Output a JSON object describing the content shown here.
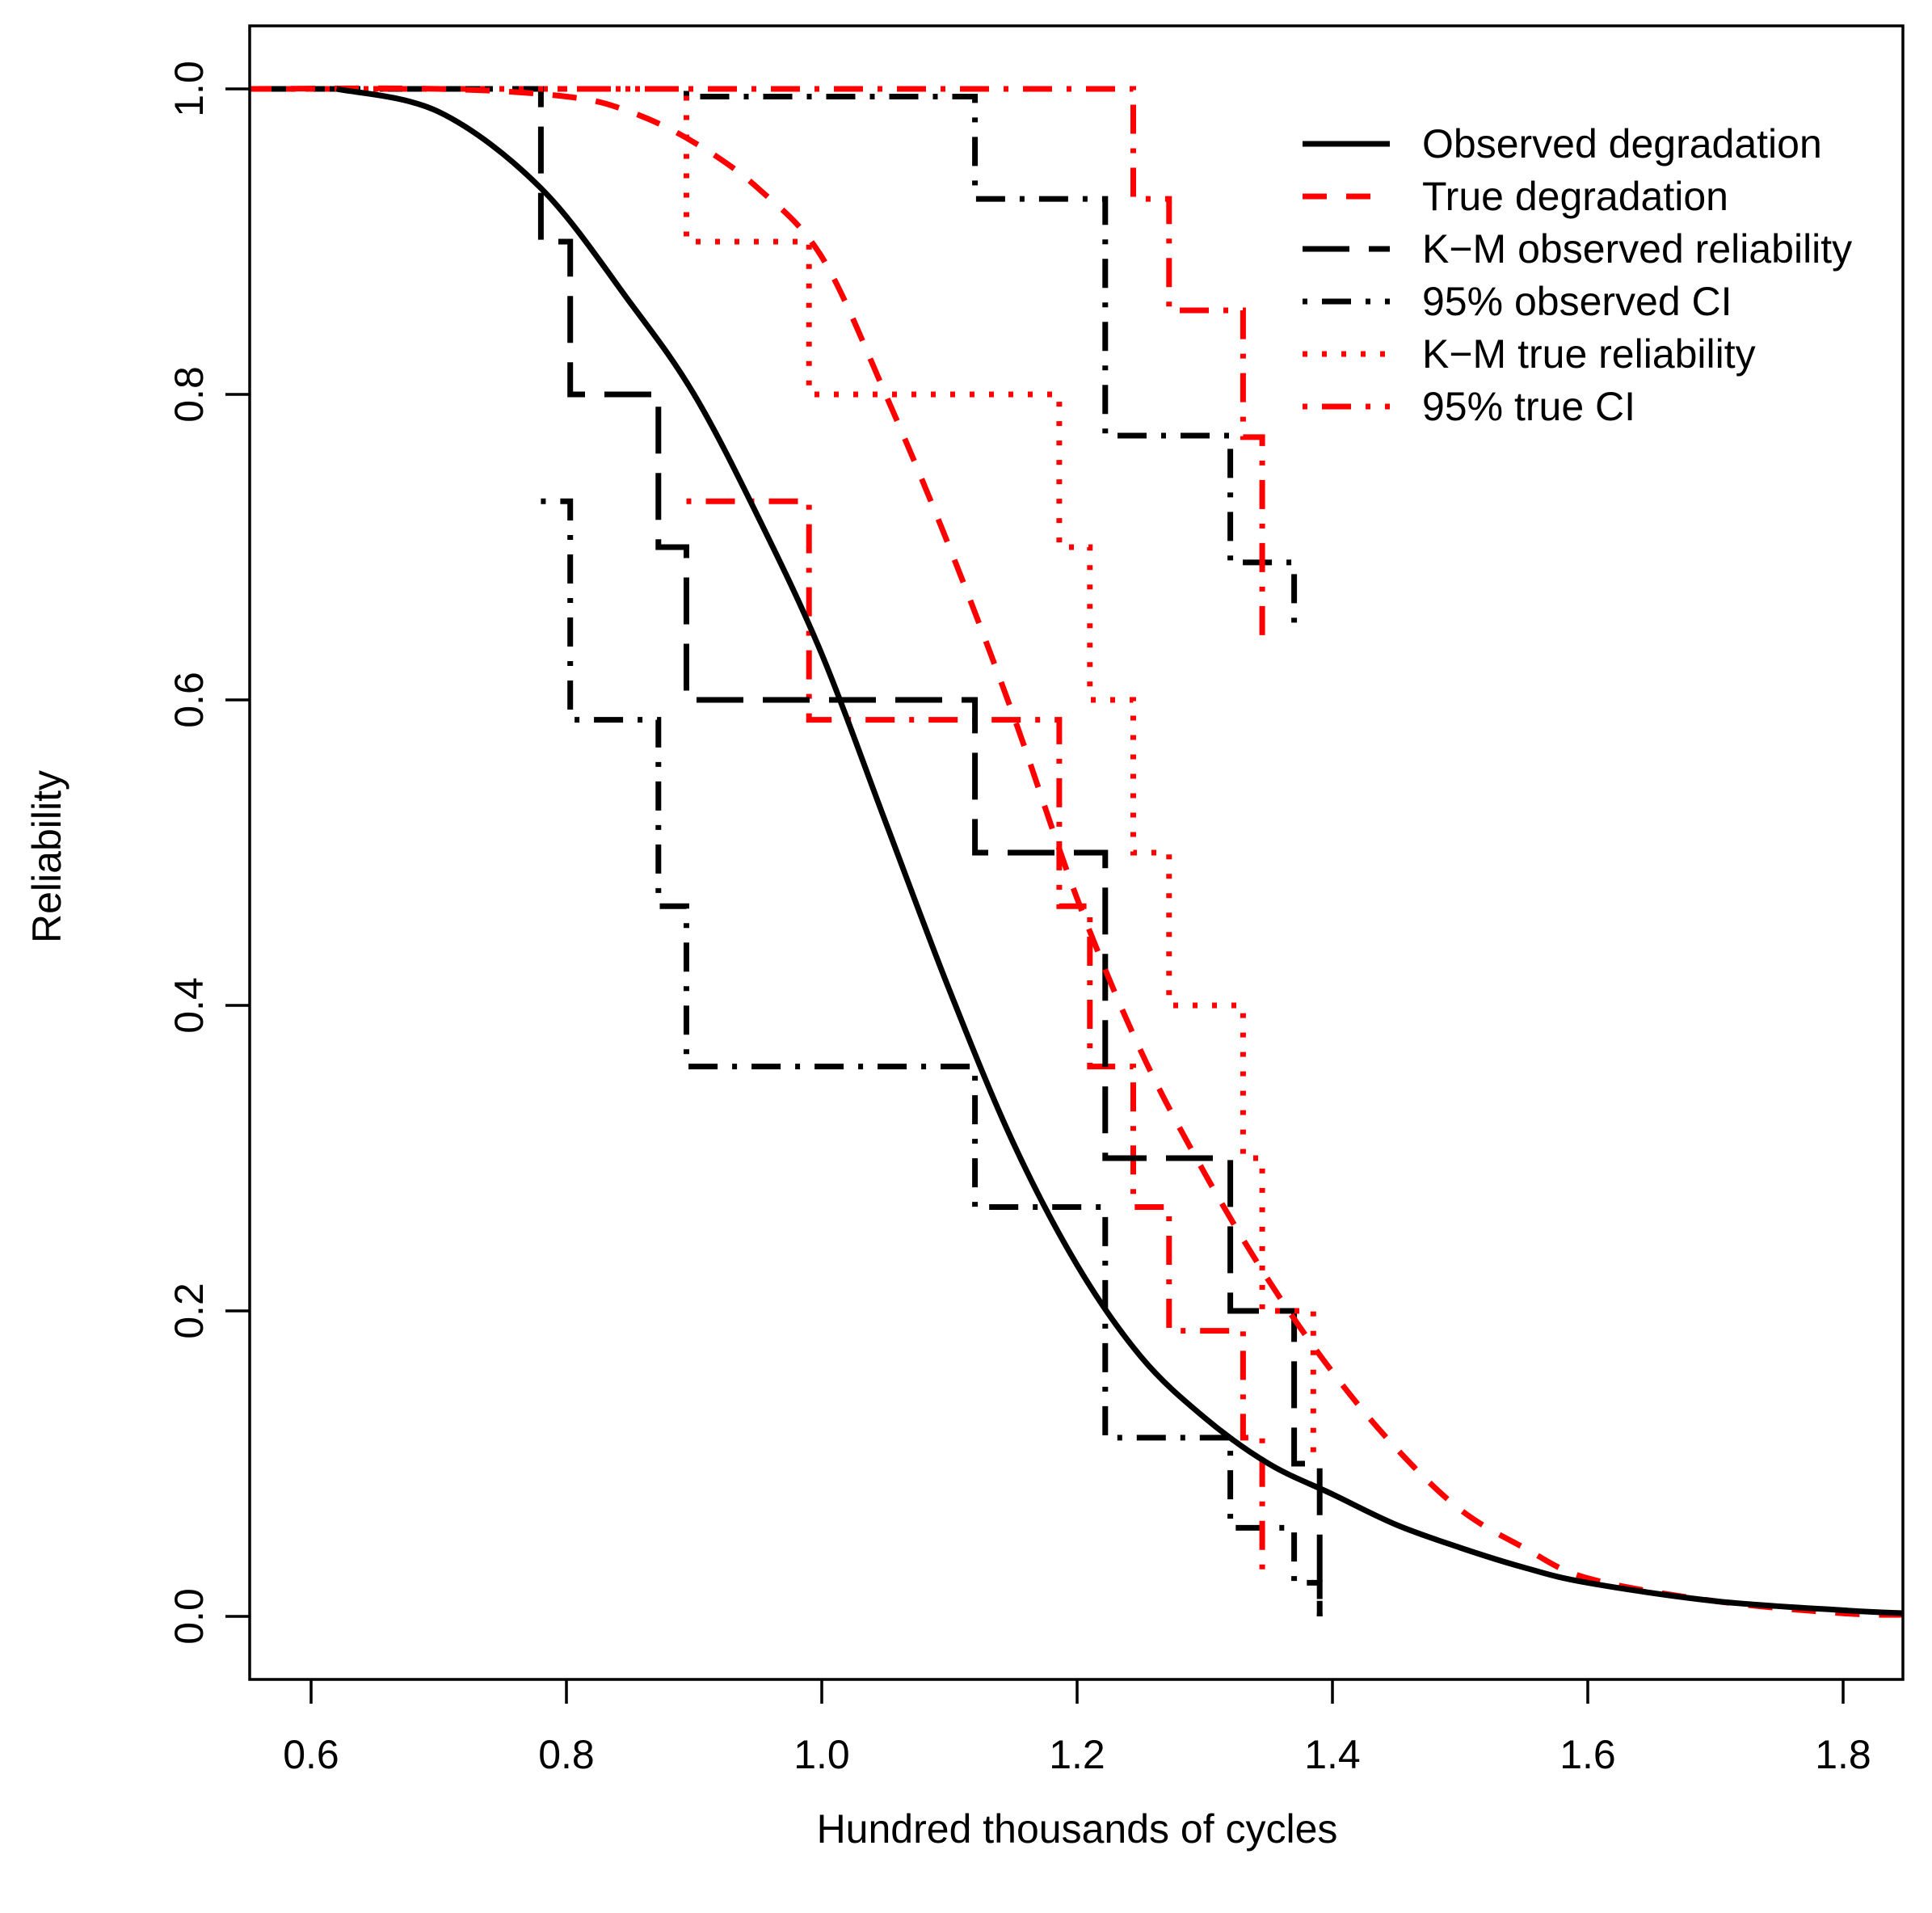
{
  "chart_data": {
    "type": "line",
    "title": "",
    "xlabel": "Hundred thousands of cycles",
    "ylabel": "Reliability",
    "xlim": [
      0.55,
      1.85
    ],
    "ylim": [
      0.0,
      1.0
    ],
    "x_ticks": [
      0.6,
      0.8,
      1.0,
      1.2,
      1.4,
      1.6,
      1.8
    ],
    "x_tick_labels": [
      "0.6",
      "0.8",
      "1.0",
      "1.2",
      "1.4",
      "1.6",
      "1.8"
    ],
    "y_ticks": [
      0.0,
      0.2,
      0.4,
      0.6,
      0.8,
      1.0
    ],
    "y_tick_labels": [
      "0.0",
      "0.2",
      "0.4",
      "0.6",
      "0.8",
      "1.0"
    ],
    "grid": false,
    "legend_position": "top-right",
    "series": [
      {
        "name": "Observed degradation",
        "color": "#000000",
        "style": "solid",
        "kind": "curve",
        "x": [
          0.62,
          0.7,
          0.78,
          0.85,
          0.9,
          0.95,
          1.0,
          1.05,
          1.1,
          1.15,
          1.2,
          1.25,
          1.3,
          1.35,
          1.4,
          1.45,
          1.5,
          1.55,
          1.6,
          1.7,
          1.8,
          1.85
        ],
        "y": [
          1.0,
          0.985,
          0.935,
          0.86,
          0.8,
          0.72,
          0.63,
          0.52,
          0.41,
          0.31,
          0.23,
          0.17,
          0.13,
          0.1,
          0.08,
          0.06,
          0.045,
          0.032,
          0.022,
          0.01,
          0.004,
          0.002
        ]
      },
      {
        "name": "True degradation",
        "color": "#ff0000",
        "style": "dashed",
        "kind": "curve",
        "x": [
          0.55,
          0.7,
          0.8,
          0.85,
          0.9,
          0.95,
          1.0,
          1.05,
          1.1,
          1.15,
          1.2,
          1.25,
          1.3,
          1.35,
          1.4,
          1.45,
          1.5,
          1.55,
          1.6,
          1.7,
          1.8,
          1.85
        ],
        "y": [
          1.0,
          1.0,
          0.995,
          0.985,
          0.965,
          0.935,
          0.89,
          0.8,
          0.7,
          0.59,
          0.47,
          0.37,
          0.29,
          0.22,
          0.16,
          0.11,
          0.07,
          0.045,
          0.025,
          0.01,
          0.002,
          0.001
        ]
      },
      {
        "name": "K−M observed reliability",
        "color": "#000000",
        "style": "longdash",
        "kind": "step",
        "x": [
          0.55,
          0.78,
          0.803,
          0.872,
          0.894,
          1.12,
          1.222,
          1.32,
          1.37,
          1.39
        ],
        "y": [
          1.0,
          0.9,
          0.8,
          0.7,
          0.6,
          0.5,
          0.3,
          0.2,
          0.1,
          0.0
        ]
      },
      {
        "name": "95% observed CI",
        "color": "#000000",
        "style": "dotdash",
        "kind": "step",
        "bands": [
          {
            "x": [
              0.55,
              0.78,
              0.803,
              0.872,
              0.894,
              1.12,
              1.222,
              1.32,
              1.37
            ],
            "y": [
              1.0,
              1.0,
              1.0,
              1.0,
              0.995,
              0.928,
              0.773,
              0.69,
              0.645
            ]
          },
          {
            "x": [
              0.78,
              0.803,
              0.872,
              0.894,
              1.12,
              1.222,
              1.32,
              1.37,
              1.39
            ],
            "y": [
              0.73,
              0.587,
              0.465,
              0.36,
              0.268,
              0.117,
              0.058,
              0.022,
              0.0
            ]
          }
        ]
      },
      {
        "name": "K−M true reliability",
        "color": "#ff0000",
        "style": "dotted",
        "kind": "step",
        "x": [
          0.55,
          0.894,
          0.99,
          1.186,
          1.21,
          1.244,
          1.272,
          1.33,
          1.345,
          1.385
        ],
        "y": [
          1.0,
          0.9,
          0.8,
          0.7,
          0.6,
          0.5,
          0.4,
          0.3,
          0.2,
          0.1
        ]
      },
      {
        "name": "95% true CI",
        "color": "#ff0000",
        "style": "dotdash",
        "kind": "step",
        "bands": [
          {
            "x": [
              0.55,
              0.894,
              0.99,
              1.186,
              1.21,
              1.244,
              1.272,
              1.33,
              1.345
            ],
            "y": [
              1.0,
              1.0,
              1.0,
              1.0,
              1.0,
              0.928,
              0.855,
              0.772,
              0.64
            ]
          },
          {
            "x": [
              0.894,
              0.99,
              1.186,
              1.21,
              1.244,
              1.272,
              1.33,
              1.345
            ],
            "y": [
              0.73,
              0.587,
              0.465,
              0.36,
              0.268,
              0.187,
              0.117,
              0.025
            ]
          }
        ]
      }
    ]
  }
}
